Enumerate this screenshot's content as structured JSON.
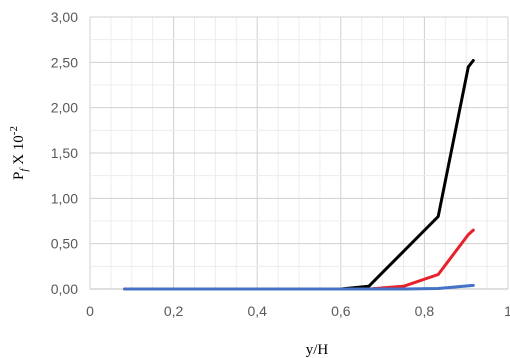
{
  "chart_data": {
    "type": "line",
    "xlabel": "y/H",
    "ylabel": {
      "base": "P",
      "subscript": "f",
      "rest": " X 10",
      "superscript": "-2"
    },
    "xlim": [
      0,
      1
    ],
    "ylim": [
      0,
      3
    ],
    "x_ticks": [
      "0",
      "0,2",
      "0,4",
      "0,6",
      "0,8",
      "1"
    ],
    "y_ticks": [
      "0,00",
      "0,50",
      "1,00",
      "1,50",
      "2,00",
      "2,50",
      "3,00"
    ],
    "grid": true,
    "legend": "none",
    "series": [
      {
        "color": "#000000",
        "points": [
          [
            0.083,
            0.0
          ],
          [
            0.5,
            0.0
          ],
          [
            0.6,
            0.0
          ],
          [
            0.667,
            0.03
          ],
          [
            0.833,
            0.8
          ],
          [
            0.905,
            2.45
          ],
          [
            0.917,
            2.52
          ]
        ]
      },
      {
        "color": "#e8202a",
        "points": [
          [
            0.083,
            0.0
          ],
          [
            0.5,
            0.0
          ],
          [
            0.667,
            0.0
          ],
          [
            0.75,
            0.03
          ],
          [
            0.833,
            0.16
          ],
          [
            0.905,
            0.6
          ],
          [
            0.917,
            0.65
          ]
        ]
      },
      {
        "color": "#4472c4",
        "points": [
          [
            0.083,
            0.0
          ],
          [
            0.667,
            0.0
          ],
          [
            0.75,
            0.0
          ],
          [
            0.833,
            0.005
          ],
          [
            0.917,
            0.04
          ]
        ]
      }
    ]
  }
}
